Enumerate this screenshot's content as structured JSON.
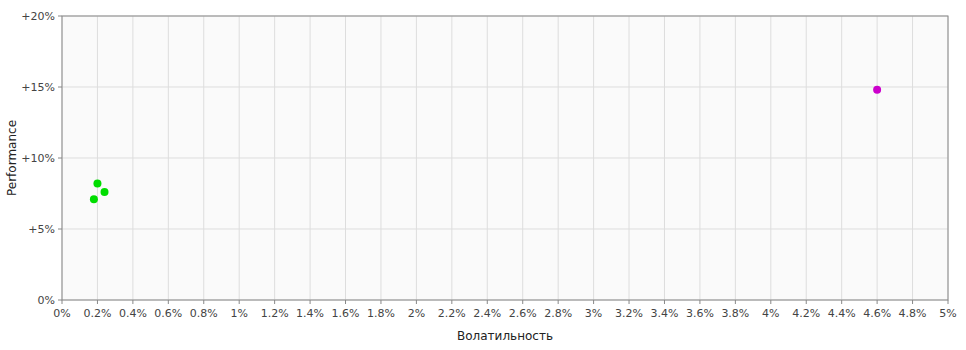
{
  "chart_data": {
    "type": "scatter",
    "xlabel": "Волатильность",
    "ylabel": "Performance",
    "xlim": [
      0,
      0.05
    ],
    "ylim": [
      0,
      0.2
    ],
    "xticks": [
      {
        "value": 0,
        "label": "0%"
      },
      {
        "value": 0.002,
        "label": "0.2%"
      },
      {
        "value": 0.004,
        "label": "0.4%"
      },
      {
        "value": 0.006,
        "label": "0.6%"
      },
      {
        "value": 0.008,
        "label": "0.8%"
      },
      {
        "value": 0.01,
        "label": "1%"
      },
      {
        "value": 0.012,
        "label": "1.2%"
      },
      {
        "value": 0.014,
        "label": "1.4%"
      },
      {
        "value": 0.016,
        "label": "1.6%"
      },
      {
        "value": 0.018,
        "label": "1.8%"
      },
      {
        "value": 0.02,
        "label": "2%"
      },
      {
        "value": 0.022,
        "label": "2.2%"
      },
      {
        "value": 0.024,
        "label": "2.4%"
      },
      {
        "value": 0.026,
        "label": "2.6%"
      },
      {
        "value": 0.028,
        "label": "2.8%"
      },
      {
        "value": 0.03,
        "label": "3%"
      },
      {
        "value": 0.032,
        "label": "3.2%"
      },
      {
        "value": 0.034,
        "label": "3.4%"
      },
      {
        "value": 0.036,
        "label": "3.6%"
      },
      {
        "value": 0.038,
        "label": "3.8%"
      },
      {
        "value": 0.04,
        "label": "4%"
      },
      {
        "value": 0.042,
        "label": "4.2%"
      },
      {
        "value": 0.044,
        "label": "4.4%"
      },
      {
        "value": 0.046,
        "label": "4.6%"
      },
      {
        "value": 0.048,
        "label": "4.8%"
      },
      {
        "value": 0.05,
        "label": "5%"
      }
    ],
    "yticks": [
      {
        "value": 0,
        "label": "0%"
      },
      {
        "value": 0.05,
        "label": "+5%"
      },
      {
        "value": 0.1,
        "label": "+10%"
      },
      {
        "value": 0.15,
        "label": "+15%"
      },
      {
        "value": 0.2,
        "label": "+20%"
      }
    ],
    "grid": true,
    "series": [
      {
        "color": "#00dd00",
        "x": [
          0.002,
          0.0024,
          0.0018
        ],
        "values": [
          0.082,
          0.076,
          0.071
        ]
      },
      {
        "color": "#cc00cc",
        "x": [
          0.046
        ],
        "values": [
          0.148
        ]
      }
    ]
  }
}
